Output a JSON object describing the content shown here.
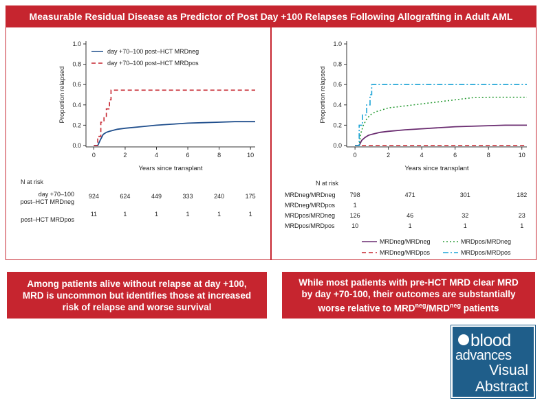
{
  "banner": {
    "title": "Measurable Residual Disease as Predictor of Post Day +100 Relapses Following Allografting in Adult AML"
  },
  "chart_data": [
    {
      "type": "line",
      "ylabel": "Proportion relapsed",
      "xlabel": "Years since transplant",
      "xlim": [
        -0.5,
        10.3
      ],
      "ylim": [
        0,
        1.0
      ],
      "xticks": [
        0,
        2,
        4,
        6,
        8,
        10
      ],
      "yticks": [
        0.0,
        0.2,
        0.4,
        0.6,
        0.8,
        1.0
      ],
      "legend_position": "top-left",
      "series": [
        {
          "name": "day +70–100 post–HCT MRDneg",
          "color": "#1f4e8c",
          "style": "solid",
          "points": [
            [
              0,
              0
            ],
            [
              0.25,
              0
            ],
            [
              0.4,
              0.05
            ],
            [
              0.6,
              0.11
            ],
            [
              0.8,
              0.13
            ],
            [
              1.0,
              0.14
            ],
            [
              1.5,
              0.16
            ],
            [
              2.0,
              0.17
            ],
            [
              3.0,
              0.185
            ],
            [
              4.0,
              0.2
            ],
            [
              5.0,
              0.21
            ],
            [
              6.0,
              0.22
            ],
            [
              7.0,
              0.225
            ],
            [
              8.0,
              0.23
            ],
            [
              9.0,
              0.235
            ],
            [
              10.3,
              0.235
            ]
          ]
        },
        {
          "name": "day +70–100 post–HCT MRDpos",
          "color": "#c6252f",
          "style": "dashed",
          "points": [
            [
              0,
              0
            ],
            [
              0.25,
              0
            ],
            [
              0.25,
              0.09
            ],
            [
              0.45,
              0.09
            ],
            [
              0.45,
              0.23
            ],
            [
              0.65,
              0.23
            ],
            [
              0.65,
              0.28
            ],
            [
              0.8,
              0.28
            ],
            [
              0.8,
              0.36
            ],
            [
              1.0,
              0.36
            ],
            [
              1.0,
              0.45
            ],
            [
              1.1,
              0.45
            ],
            [
              1.1,
              0.545
            ],
            [
              10.3,
              0.545
            ]
          ]
        }
      ],
      "risk_table": {
        "header": "N at risk",
        "times": [
          0,
          2,
          4,
          6,
          8,
          10
        ],
        "rows": [
          {
            "label_lines": [
              "day +70–100",
              "post–HCT MRDneg"
            ],
            "values": [
              "924",
              "624",
              "449",
              "333",
              "240",
              "175"
            ]
          },
          {
            "label_lines": [
              "",
              "post–HCT MRDpos"
            ],
            "values": [
              "11",
              "1",
              "1",
              "1",
              "1",
              "1"
            ]
          }
        ]
      }
    },
    {
      "type": "line",
      "ylabel": "Proportion relapsed",
      "xlabel": "Years since transplant",
      "xlim": [
        -0.5,
        10.3
      ],
      "ylim": [
        0,
        1.0
      ],
      "xticks": [
        0,
        2,
        4,
        6,
        8,
        10
      ],
      "yticks": [
        0.0,
        0.2,
        0.4,
        0.6,
        0.8,
        1.0
      ],
      "legend_position": "bottom",
      "series": [
        {
          "name": "MRDneg/MRDneg",
          "color": "#6a2c70",
          "style": "solid",
          "points": [
            [
              0,
              0
            ],
            [
              0.25,
              0
            ],
            [
              0.4,
              0.05
            ],
            [
              0.6,
              0.08
            ],
            [
              0.8,
              0.1
            ],
            [
              1.0,
              0.11
            ],
            [
              1.5,
              0.13
            ],
            [
              2.0,
              0.14
            ],
            [
              3.0,
              0.155
            ],
            [
              4.0,
              0.165
            ],
            [
              5.0,
              0.175
            ],
            [
              6.0,
              0.185
            ],
            [
              7.0,
              0.19
            ],
            [
              8.0,
              0.195
            ],
            [
              9.0,
              0.2
            ],
            [
              10.3,
              0.2
            ]
          ]
        },
        {
          "name": "MRDpos/MRDneg",
          "color": "#2e9e3a",
          "style": "dotted",
          "points": [
            [
              0,
              0
            ],
            [
              0.25,
              0
            ],
            [
              0.35,
              0.12
            ],
            [
              0.5,
              0.2
            ],
            [
              0.7,
              0.26
            ],
            [
              0.9,
              0.3
            ],
            [
              1.2,
              0.33
            ],
            [
              1.6,
              0.35
            ],
            [
              2.0,
              0.37
            ],
            [
              3.0,
              0.39
            ],
            [
              4.0,
              0.41
            ],
            [
              5.0,
              0.43
            ],
            [
              6.0,
              0.45
            ],
            [
              7.0,
              0.47
            ],
            [
              8.0,
              0.475
            ],
            [
              9.0,
              0.475
            ],
            [
              10.3,
              0.475
            ]
          ]
        },
        {
          "name": "MRDneg/MRDpos",
          "color": "#c6252f",
          "style": "dashed",
          "points": [
            [
              0,
              0
            ],
            [
              0.25,
              0
            ],
            [
              10.3,
              0
            ]
          ]
        },
        {
          "name": "MRDpos/MRDpos",
          "color": "#1ba3d6",
          "style": "dashdot",
          "points": [
            [
              0,
              0
            ],
            [
              0.25,
              0
            ],
            [
              0.25,
              0.2
            ],
            [
              0.45,
              0.2
            ],
            [
              0.45,
              0.3
            ],
            [
              0.7,
              0.3
            ],
            [
              0.7,
              0.4
            ],
            [
              0.9,
              0.4
            ],
            [
              0.9,
              0.5
            ],
            [
              1.0,
              0.5
            ],
            [
              1.0,
              0.6
            ],
            [
              10.3,
              0.6
            ]
          ]
        }
      ],
      "risk_table": {
        "header": "N at risk",
        "times": [
          0,
          3.3,
          6.6,
          10
        ],
        "rows": [
          {
            "label": "MRDneg/MRDneg",
            "values": [
              "798",
              "471",
              "301",
              "182"
            ]
          },
          {
            "label": "MRDneg/MRDpos",
            "values": [
              "1",
              "",
              "",
              ""
            ]
          },
          {
            "label": "MRDpos/MRDneg",
            "values": [
              "126",
              "46",
              "32",
              "23"
            ]
          },
          {
            "label": "MRDpos/MRDpos",
            "values": [
              "10",
              "1",
              "1",
              "1"
            ]
          }
        ]
      }
    }
  ],
  "conclusions": {
    "left": {
      "lines": [
        "Among patients alive without relapse at day +100,",
        "MRD is uncommon but identifies those at increased",
        "risk of relapse and worse survival"
      ]
    },
    "right": {
      "line1": "While most patients with pre-HCT MRD clear MRD",
      "line2": "by day +70-100, their outcomes are substantially",
      "line3_prefix": "worse relative to MRD",
      "sup1": "neg",
      "slash": "/MRD",
      "sup2": "neg",
      "suffix": " patients"
    }
  },
  "logo": {
    "line1": "blood",
    "line2": "advances",
    "line3": "Visual",
    "line4": "Abstract",
    "icon": "blood-drop-icon"
  }
}
